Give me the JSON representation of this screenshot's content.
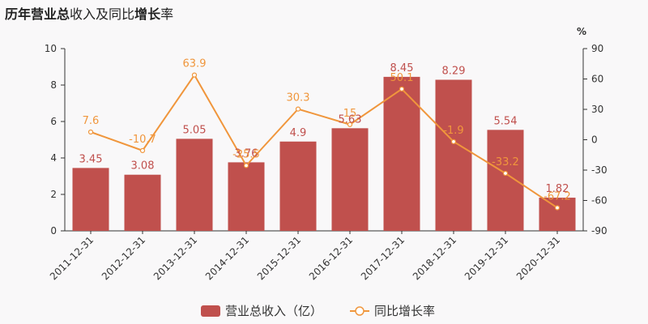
{
  "chart_data": {
    "type": "bar",
    "title_parts": [
      {
        "text": "历年",
        "bold": true
      },
      {
        "text": "营业总",
        "bold": true
      },
      {
        "text": "收入及同比",
        "bold": false
      },
      {
        "text": "增",
        "bold": true
      },
      {
        "text": "长",
        "bold": true
      },
      {
        "text": "率",
        "bold": false
      }
    ],
    "categories": [
      "2011-12-31",
      "2012-12-31",
      "2013-12-31",
      "2014-12-31",
      "2015-12-31",
      "2016-12-31",
      "2017-12-31",
      "2018-12-31",
      "2019-12-31",
      "2020-12-31"
    ],
    "series": [
      {
        "name": "营业总收入（亿）",
        "type": "bar",
        "axis": "left",
        "color": "#c0504d",
        "values": [
          3.45,
          3.08,
          5.05,
          3.76,
          4.9,
          5.63,
          8.45,
          8.29,
          5.54,
          1.82
        ],
        "labels": [
          "3.45",
          "3.08",
          "5.05",
          "3.76",
          "4.9",
          "5.63",
          "8.45",
          "8.29",
          "5.54",
          "1.82"
        ]
      },
      {
        "name": "同比增长率",
        "type": "line",
        "axis": "right",
        "color": "#f0963c",
        "values": [
          7.6,
          -10.7,
          63.9,
          -25.5,
          30.3,
          15,
          50.1,
          -1.9,
          -33.2,
          -67.2
        ],
        "labels": [
          "7.6",
          "-10.7",
          "63.9",
          "-25.5",
          "30.3",
          "15",
          "50.1",
          "-1.9",
          "-33.2",
          "-67.2"
        ]
      }
    ],
    "y_left": {
      "min": 0,
      "max": 10,
      "ticks": [
        "0",
        "2",
        "4",
        "6",
        "8",
        "10"
      ]
    },
    "y_right": {
      "min": -90,
      "max": 90,
      "unit": "%",
      "ticks": [
        "-90",
        "-60",
        "-30",
        "0",
        "30",
        "60",
        "90"
      ]
    },
    "legend_position": "bottom",
    "grid": false
  }
}
